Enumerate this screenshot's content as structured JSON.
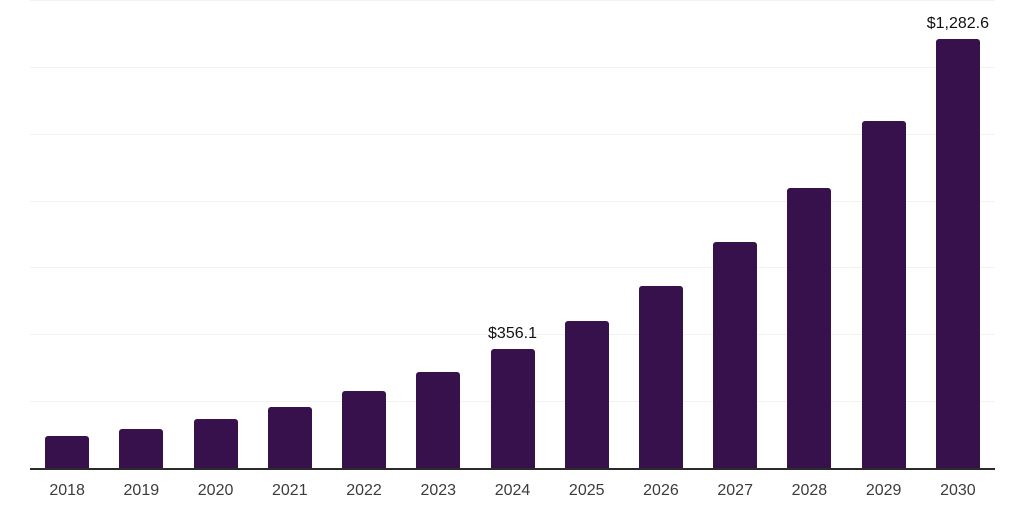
{
  "chart_data": {
    "type": "bar",
    "title": "",
    "xlabel": "",
    "ylabel": "",
    "categories": [
      "2018",
      "2019",
      "2020",
      "2021",
      "2022",
      "2023",
      "2024",
      "2025",
      "2026",
      "2027",
      "2028",
      "2029",
      "2030"
    ],
    "values": [
      96.0,
      118.0,
      146.5,
      184.0,
      230.5,
      286.0,
      356.1,
      441.0,
      544.0,
      676.0,
      838.0,
      1037.0,
      1282.6
    ],
    "labeled_points": {
      "2024": "$356.1",
      "2030": "$1,282.6"
    },
    "ylim": [
      0,
      1400
    ],
    "gridline_step": 200,
    "grid": true,
    "y_axis_tick_labels_visible": false,
    "legend_position": "none"
  },
  "colors": {
    "bar": "#36114B",
    "axis_line": "#2b2b2b",
    "gridline": "#f2f2f2",
    "tick_text": "#3c3c3c",
    "data_label_text": "#111111",
    "background": "#ffffff"
  }
}
